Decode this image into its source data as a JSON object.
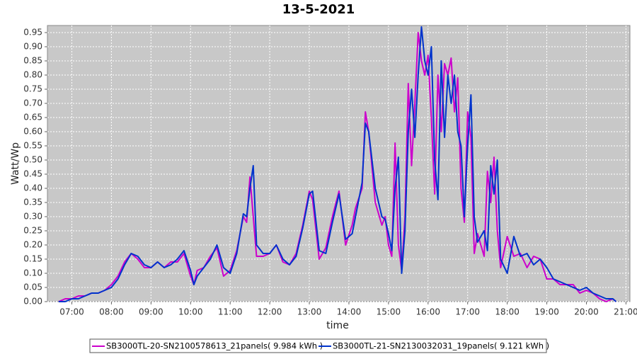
{
  "chart_data": {
    "type": "line",
    "title": "13-5-2021",
    "xlabel": "time",
    "ylabel": "Watt/Wp",
    "x": [
      "06:40",
      "06:50",
      "07:00",
      "07:10",
      "07:20",
      "07:30",
      "07:40",
      "07:50",
      "08:00",
      "08:10",
      "08:20",
      "08:30",
      "08:40",
      "08:50",
      "09:00",
      "09:10",
      "09:20",
      "09:30",
      "09:40",
      "09:50",
      "10:00",
      "10:05",
      "10:10",
      "10:20",
      "10:30",
      "10:40",
      "10:50",
      "11:00",
      "11:10",
      "11:20",
      "11:25",
      "11:30",
      "11:35",
      "11:40",
      "11:50",
      "12:00",
      "12:10",
      "12:20",
      "12:30",
      "12:40",
      "12:50",
      "13:00",
      "13:05",
      "13:15",
      "13:25",
      "13:35",
      "13:45",
      "13:55",
      "14:05",
      "14:10",
      "14:20",
      "14:25",
      "14:30",
      "14:40",
      "14:50",
      "14:55",
      "15:00",
      "15:05",
      "15:10",
      "15:15",
      "15:20",
      "15:25",
      "15:30",
      "15:35",
      "15:40",
      "15:45",
      "15:50",
      "15:55",
      "16:00",
      "16:05",
      "16:10",
      "16:15",
      "16:20",
      "16:25",
      "16:30",
      "16:35",
      "16:40",
      "16:45",
      "16:50",
      "16:55",
      "17:00",
      "17:05",
      "17:10",
      "17:15",
      "17:25",
      "17:30",
      "17:35",
      "17:40",
      "17:45",
      "17:50",
      "18:00",
      "18:10",
      "18:20",
      "18:30",
      "18:40",
      "18:50",
      "19:00",
      "19:10",
      "19:20",
      "19:30",
      "19:40",
      "19:50",
      "20:00",
      "20:10",
      "20:20",
      "20:30",
      "20:40",
      "20:45"
    ],
    "series": [
      {
        "name": "SB3000TL-20-SN2100578613_21panels( 9.984 kWh )",
        "color": "#cc00cc",
        "values": [
          0.0,
          0.01,
          0.01,
          0.02,
          0.02,
          0.03,
          0.03,
          0.04,
          0.06,
          0.09,
          0.14,
          0.17,
          0.15,
          0.12,
          0.12,
          0.14,
          0.12,
          0.14,
          0.14,
          0.17,
          0.09,
          0.06,
          0.11,
          0.12,
          0.16,
          0.19,
          0.09,
          0.11,
          0.18,
          0.3,
          0.28,
          0.44,
          0.3,
          0.16,
          0.16,
          0.17,
          0.2,
          0.14,
          0.13,
          0.17,
          0.27,
          0.39,
          0.36,
          0.15,
          0.19,
          0.3,
          0.39,
          0.2,
          0.27,
          0.33,
          0.4,
          0.67,
          0.6,
          0.35,
          0.27,
          0.3,
          0.2,
          0.16,
          0.56,
          0.2,
          0.11,
          0.3,
          0.77,
          0.48,
          0.7,
          0.95,
          0.85,
          0.8,
          0.87,
          0.65,
          0.38,
          0.8,
          0.6,
          0.84,
          0.8,
          0.86,
          0.67,
          0.79,
          0.4,
          0.28,
          0.67,
          0.58,
          0.17,
          0.24,
          0.16,
          0.46,
          0.35,
          0.51,
          0.25,
          0.12,
          0.23,
          0.16,
          0.17,
          0.12,
          0.16,
          0.15,
          0.08,
          0.08,
          0.06,
          0.06,
          0.06,
          0.03,
          0.04,
          0.03,
          0.01,
          0.0,
          0.01,
          0.0
        ]
      },
      {
        "name": "SB3000TL-21-SN2130032031_19panels( 9.121 kWh )",
        "color": "#0033cc",
        "values": [
          0.0,
          0.0,
          0.01,
          0.01,
          0.02,
          0.03,
          0.03,
          0.04,
          0.05,
          0.08,
          0.13,
          0.17,
          0.16,
          0.13,
          0.12,
          0.14,
          0.12,
          0.13,
          0.15,
          0.18,
          0.11,
          0.06,
          0.09,
          0.12,
          0.15,
          0.2,
          0.12,
          0.1,
          0.17,
          0.31,
          0.3,
          0.4,
          0.48,
          0.2,
          0.17,
          0.17,
          0.2,
          0.15,
          0.13,
          0.16,
          0.26,
          0.38,
          0.39,
          0.18,
          0.17,
          0.28,
          0.38,
          0.22,
          0.24,
          0.3,
          0.42,
          0.63,
          0.6,
          0.4,
          0.3,
          0.29,
          0.24,
          0.18,
          0.4,
          0.51,
          0.1,
          0.25,
          0.6,
          0.75,
          0.58,
          0.8,
          0.97,
          0.85,
          0.8,
          0.9,
          0.5,
          0.36,
          0.85,
          0.58,
          0.8,
          0.7,
          0.8,
          0.6,
          0.55,
          0.3,
          0.55,
          0.73,
          0.3,
          0.21,
          0.25,
          0.18,
          0.48,
          0.38,
          0.5,
          0.15,
          0.1,
          0.23,
          0.16,
          0.17,
          0.13,
          0.15,
          0.12,
          0.08,
          0.07,
          0.06,
          0.05,
          0.04,
          0.05,
          0.03,
          0.02,
          0.01,
          0.01,
          0.0
        ]
      }
    ],
    "xlim": [
      "06:23",
      "21:06"
    ],
    "xticks": [
      "07:00",
      "08:00",
      "09:00",
      "10:00",
      "11:00",
      "12:00",
      "13:00",
      "14:00",
      "15:00",
      "16:00",
      "17:00",
      "18:00",
      "19:00",
      "20:00",
      "21:00"
    ],
    "ylim": [
      0,
      0.975
    ],
    "yticks": [
      {
        "value": 0,
        "label": "0.00"
      },
      {
        "value": 0.05,
        "label": "0.05"
      },
      {
        "value": 0.1,
        "label": "0.10"
      },
      {
        "value": 0.15,
        "label": "0.15"
      },
      {
        "value": 0.2,
        "label": "0.20"
      },
      {
        "value": 0.25,
        "label": "0.25"
      },
      {
        "value": 0.3,
        "label": "0.30"
      },
      {
        "value": 0.35,
        "label": "0.35"
      },
      {
        "value": 0.4,
        "label": "0.40"
      },
      {
        "value": 0.45,
        "label": "0.45"
      },
      {
        "value": 0.5,
        "label": "0.50"
      },
      {
        "value": 0.55,
        "label": "0.55"
      },
      {
        "value": 0.6,
        "label": "0.60"
      },
      {
        "value": 0.65,
        "label": "0.65"
      },
      {
        "value": 0.7,
        "label": "0.70"
      },
      {
        "value": 0.75,
        "label": "0.75"
      },
      {
        "value": 0.8,
        "label": "0.80"
      },
      {
        "value": 0.85,
        "label": "0.85"
      },
      {
        "value": 0.9,
        "label": "0.90"
      },
      {
        "value": 0.95,
        "label": "0.95"
      }
    ],
    "grid": true,
    "legend": "bottom"
  }
}
